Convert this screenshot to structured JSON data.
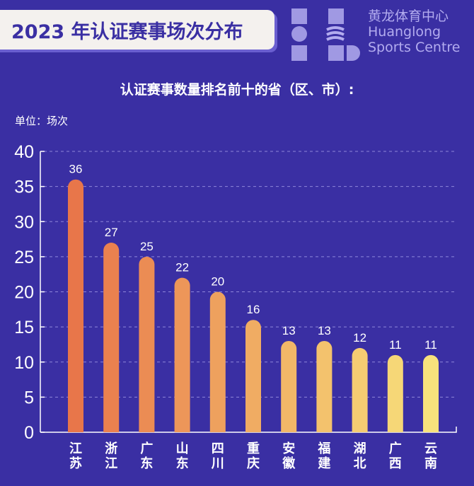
{
  "title": "2023 年认证赛事场次分布",
  "watermark": {
    "line1": "黄龙体育中心",
    "line2": "Huanglong",
    "line3": "Sports Centre"
  },
  "chart_data": {
    "type": "bar",
    "title": "2023 年认证赛事场次分布",
    "subtitle": "认证赛事数量排名前十的省（区、市）:",
    "ylabel": "单位：场次",
    "categories": [
      "江苏",
      "浙江",
      "广东",
      "山东",
      "四川",
      "重庆",
      "安徽",
      "福建",
      "湖北",
      "广西",
      "云南"
    ],
    "values": [
      36,
      27,
      25,
      22,
      20,
      16,
      13,
      13,
      12,
      11,
      11
    ],
    "ylim": [
      0,
      40
    ],
    "yticks": [
      0,
      5,
      10,
      15,
      20,
      25,
      30,
      35,
      40
    ],
    "grid": true,
    "colors": {
      "start": "#e8764a",
      "end": "#f8e27c",
      "background": "#3a2fa3"
    }
  }
}
